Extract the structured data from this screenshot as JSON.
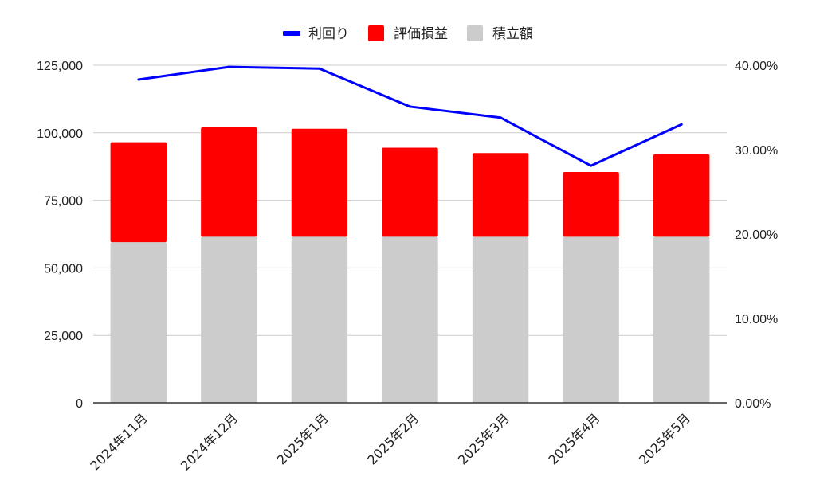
{
  "chart_data": {
    "type": "bar",
    "stacked": true,
    "categories": [
      "2024年11月",
      "2024年12月",
      "2025年1月",
      "2025年2月",
      "2025年3月",
      "2025年4月",
      "2025年5月"
    ],
    "series": [
      {
        "name": "積立額",
        "type": "bar",
        "axis": "left",
        "color": "#cccccc",
        "values": [
          59500,
          61500,
          61500,
          61500,
          61500,
          61500,
          61500
        ]
      },
      {
        "name": "評価損益",
        "type": "bar",
        "axis": "left",
        "color": "#ff0000",
        "values": [
          37000,
          40500,
          40000,
          33000,
          31000,
          24000,
          30500
        ]
      },
      {
        "name": "利回り",
        "type": "line",
        "axis": "right",
        "color": "#0000ff",
        "values": [
          0.383,
          0.398,
          0.396,
          0.351,
          0.338,
          0.281,
          0.33
        ]
      }
    ],
    "y_left": {
      "min": 0,
      "max": 125000,
      "ticks": [
        0,
        25000,
        50000,
        75000,
        100000,
        125000
      ],
      "tick_labels": [
        "0",
        "25,000",
        "50,000",
        "75,000",
        "100,000",
        "125,000"
      ]
    },
    "y_right": {
      "min": 0,
      "max": 0.4,
      "ticks": [
        0,
        0.1,
        0.2,
        0.3,
        0.4
      ],
      "tick_labels": [
        "0.00%",
        "10.00%",
        "20.00%",
        "30.00%",
        "40.00%"
      ]
    },
    "legend": {
      "position": "top",
      "items": [
        {
          "label": "利回り",
          "color": "#0000ff",
          "shape": "line"
        },
        {
          "label": "評価損益",
          "color": "#ff0000",
          "shape": "square"
        },
        {
          "label": "積立額",
          "color": "#cccccc",
          "shape": "square"
        }
      ]
    },
    "grid": true
  }
}
